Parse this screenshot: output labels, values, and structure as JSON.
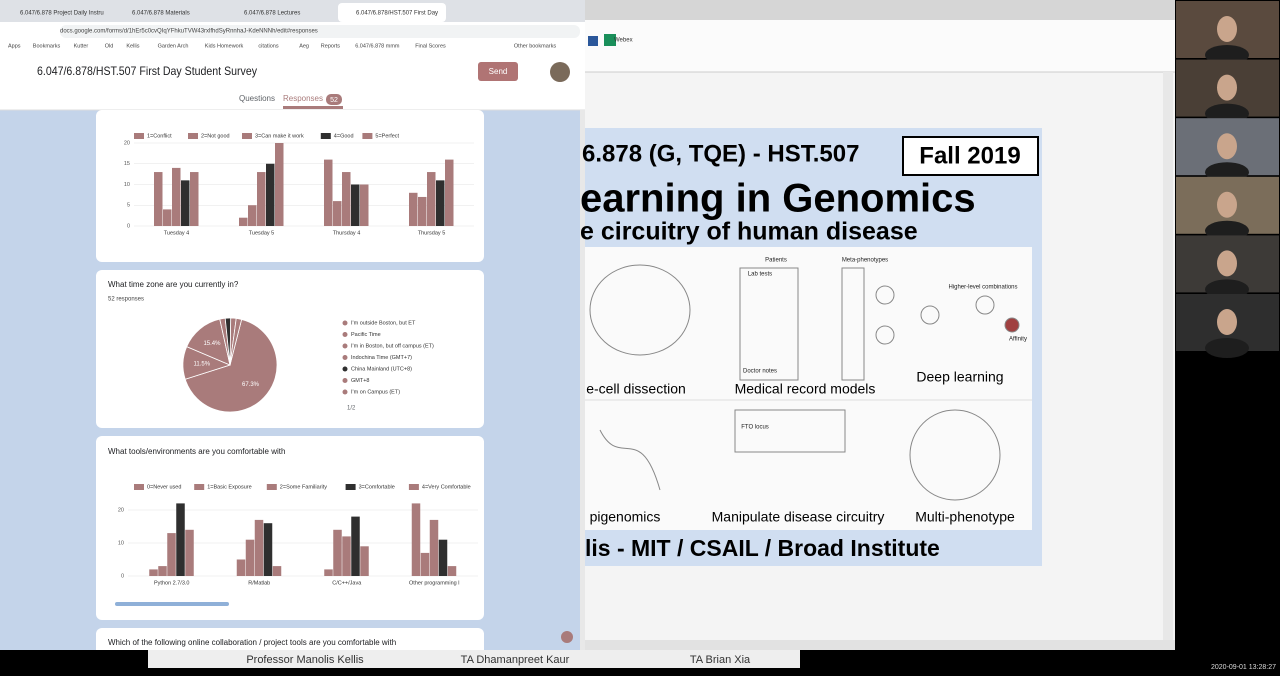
{
  "browser": {
    "tabs": [
      "6.047/6.878 Project Daily Instru",
      "6.047/6.878 Materials",
      "6.047/6.878 Lectures",
      "6.047/6.878/HST.507 First Day"
    ],
    "url": "docs.google.com/forms/d/1hEr5c0cvQIqYFhkuTVW43rxlfhdSyRnnhaJ-KdeNNNh/edit#responses",
    "bookmarks": [
      "Apps",
      "Bookmarks",
      "Kutter",
      "Old",
      "Kellis",
      "Garden Arch",
      "Kids Homework",
      "citations",
      "Aeg",
      "Reports",
      "6.047/6.878 mmm",
      "Final Scores",
      "Other bookmarks"
    ]
  },
  "form": {
    "title": "6.047/6.878/HST.507 First Day Student Survey",
    "send": "Send",
    "tabs": [
      "Questions",
      "Responses"
    ],
    "response_count": "52",
    "next_question": "Which of the following online collaboration / project tools are you comfortable with",
    "pagination": "1/2"
  },
  "chart_data": [
    {
      "type": "bar",
      "categories": [
        "Tuesday 4",
        "Tuesday 5",
        "Thursday 4",
        "Thursday 5"
      ],
      "series": [
        {
          "name": "1=Conflict",
          "color": "#a97b7b",
          "values": [
            13,
            2,
            16,
            8
          ]
        },
        {
          "name": "2=Not good",
          "color": "#a97b7b",
          "values": [
            4,
            5,
            6,
            7
          ]
        },
        {
          "name": "3=Can make it work",
          "color": "#a97b7b",
          "values": [
            14,
            13,
            13,
            13
          ]
        },
        {
          "name": "4=Good",
          "color": "#2f2f2f",
          "values": [
            11,
            15,
            10,
            11
          ]
        },
        {
          "name": "5=Perfect",
          "color": "#a97b7b",
          "values": [
            13,
            20,
            10,
            16
          ]
        }
      ],
      "ylim": [
        0,
        20
      ],
      "yticks": [
        0,
        5,
        10,
        15,
        20
      ],
      "grid": true
    },
    {
      "type": "pie",
      "title": "What time zone are you currently in?",
      "subtitle": "52 responses",
      "categories": [
        "I'm outside Boston, but ET",
        "Pacific Time",
        "I'm in Boston, but off campus (ET)",
        "Indochina Time (GMT+7)",
        "China Mainland (UTC+8)",
        "GMT+8",
        "I'm on Campus (ET)"
      ],
      "values": [
        67.3,
        11.5,
        15.4,
        1.9,
        1.9,
        1.9,
        1.9
      ],
      "value_labels": [
        "67.3%",
        "11.5%",
        "15.4%",
        null,
        null,
        null,
        null
      ],
      "colors": [
        "#a97b7b",
        "#a97b7b",
        "#a97b7b",
        "#a97b7b",
        "#2f2f2f",
        "#a97b7b",
        "#a97b7b"
      ]
    },
    {
      "type": "bar",
      "title": "What tools/environments are you comfortable with",
      "categories": [
        "Python 2.7/3.0",
        "R/Matlab",
        "C/C++/Java",
        "Other programming l"
      ],
      "series": [
        {
          "name": "0=Never used",
          "color": "#a97b7b",
          "values": [
            2,
            5,
            2,
            22
          ]
        },
        {
          "name": "1=Basic Exposure",
          "color": "#a97b7b",
          "values": [
            3,
            11,
            14,
            7
          ]
        },
        {
          "name": "2=Some Familiarity",
          "color": "#a97b7b",
          "values": [
            13,
            17,
            12,
            17
          ]
        },
        {
          "name": "3=Comfortable",
          "color": "#2f2f2f",
          "values": [
            22,
            16,
            18,
            11
          ]
        },
        {
          "name": "4=Very Comfortable",
          "color": "#a97b7b",
          "values": [
            14,
            3,
            9,
            3
          ]
        }
      ],
      "ylim": [
        0,
        20
      ],
      "yticks": [
        0,
        10,
        20
      ],
      "grid": true
    }
  ],
  "slide": {
    "course": "6.878 (G, TQE) - HST.507",
    "term": "Fall 2019",
    "title": "earning in Genomics",
    "subtitle": "e circuitry of human disease",
    "panels": [
      "e-cell dissection",
      "Medical record models",
      "Deep learning",
      "pigenomics",
      "Manipulate disease circuitry",
      "Multi-phenotype"
    ],
    "small_labels": [
      "Patients",
      "Meta-phenotypes",
      "Lab tests",
      "Doctor notes",
      "Higher-level combinations",
      "Affinity",
      "FTO locus"
    ],
    "footer": "lis - MIT / CSAIL / Broad Institute"
  },
  "ribbon": {
    "webex": "Webex"
  },
  "participants": [
    "Professor Manolis Kellis",
    "TA Dhamanpreet Kaur",
    "TA Brian Xia"
  ],
  "timestamp": "2020-09-01 13:28:27"
}
